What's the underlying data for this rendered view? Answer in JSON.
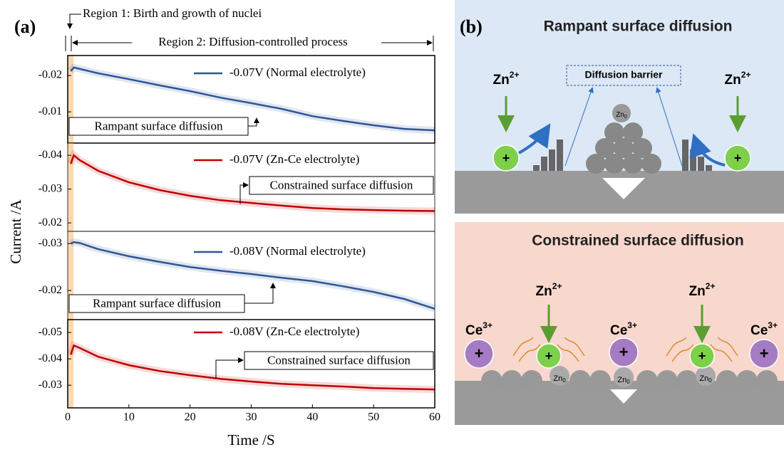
{
  "figure": {
    "label": "(a)",
    "region1": "Region 1: Birth and growth of nuclei",
    "region2": "Region 2: Diffusion-controlled process"
  },
  "chart_data": [
    {
      "type": "line",
      "ylabel": "Current /A",
      "xlim": [
        0,
        60
      ],
      "ylim": [
        -0.0014,
        -0.0255
      ],
      "yticks": [
        -0.02,
        -0.01
      ],
      "x": [
        0.5,
        1,
        2,
        5,
        10,
        15,
        20,
        25,
        30,
        35,
        40,
        45,
        50,
        55,
        60
      ],
      "series": [
        {
          "name": "-0.07V (Normal electrolyte)",
          "color": "#2f5597",
          "values": [
            -0.0212,
            -0.0222,
            -0.0218,
            -0.0206,
            -0.019,
            -0.0173,
            -0.0157,
            -0.0139,
            -0.0124,
            -0.0108,
            -0.0088,
            -0.0075,
            -0.0063,
            -0.0053,
            -0.0049
          ]
        }
      ],
      "annotation": "Rampant surface diffusion"
    },
    {
      "type": "line",
      "xlim": [
        0,
        60
      ],
      "ylim": [
        -0.0175,
        -0.0436
      ],
      "yticks": [
        -0.04,
        -0.03,
        -0.02
      ],
      "x": [
        0.5,
        1,
        2,
        5,
        10,
        15,
        20,
        25,
        30,
        35,
        40,
        45,
        50,
        55,
        60
      ],
      "series": [
        {
          "name": "-0.07V (Zn-Ce electrolyte)",
          "color": "#c00000",
          "values": [
            -0.0375,
            -0.04,
            -0.0385,
            -0.0354,
            -0.032,
            -0.0297,
            -0.028,
            -0.0267,
            -0.0259,
            -0.0251,
            -0.0244,
            -0.024,
            -0.0238,
            -0.0236,
            -0.0235
          ]
        }
      ],
      "annotation": "Constrained surface diffusion"
    },
    {
      "type": "line",
      "xlim": [
        0,
        60
      ],
      "ylim": [
        -0.0138,
        -0.0326
      ],
      "yticks": [
        -0.03,
        -0.02
      ],
      "x": [
        0.5,
        1,
        2,
        5,
        10,
        15,
        20,
        25,
        30,
        35,
        40,
        45,
        50,
        55,
        60
      ],
      "series": [
        {
          "name": "-0.08V (Normal electrolyte)",
          "color": "#2f5597",
          "values": [
            -0.03,
            -0.0303,
            -0.0301,
            -0.0288,
            -0.0273,
            -0.0261,
            -0.025,
            -0.0242,
            -0.0235,
            -0.0227,
            -0.022,
            -0.0209,
            -0.0197,
            -0.0182,
            -0.0161
          ]
        }
      ],
      "annotation": "Rampant surface diffusion"
    },
    {
      "type": "line",
      "xlabel": "Time /S",
      "xlim": [
        0,
        60
      ],
      "xticks": [
        0,
        10,
        20,
        30,
        40,
        50,
        60
      ],
      "ylim": [
        -0.0214,
        -0.0549
      ],
      "yticks": [
        -0.05,
        -0.04,
        -0.03
      ],
      "x": [
        0.5,
        1,
        2,
        5,
        10,
        15,
        20,
        25,
        30,
        35,
        40,
        45,
        50,
        55,
        60
      ],
      "series": [
        {
          "name": "-0.08V (Zn-Ce electrolyte)",
          "color": "#c00000",
          "values": [
            -0.0416,
            -0.0451,
            -0.0441,
            -0.0408,
            -0.0376,
            -0.0354,
            -0.0338,
            -0.0324,
            -0.0314,
            -0.0305,
            -0.03,
            -0.0295,
            -0.0289,
            -0.0286,
            -0.0284
          ]
        }
      ],
      "annotation": "Constrained surface diffusion"
    }
  ],
  "diagram": {
    "label": "(b)",
    "top": {
      "title": "Rampant surface diffusion",
      "barrier": "Diffusion barrier"
    },
    "bottom": {
      "title": "Constrained surface diffusion"
    },
    "zn_ion": "Zn",
    "zn_charge": "2+",
    "ce_ion": "Ce",
    "ce_charge": "3+",
    "plus": "+",
    "atom": "Zn",
    "atom_sub": "0"
  }
}
